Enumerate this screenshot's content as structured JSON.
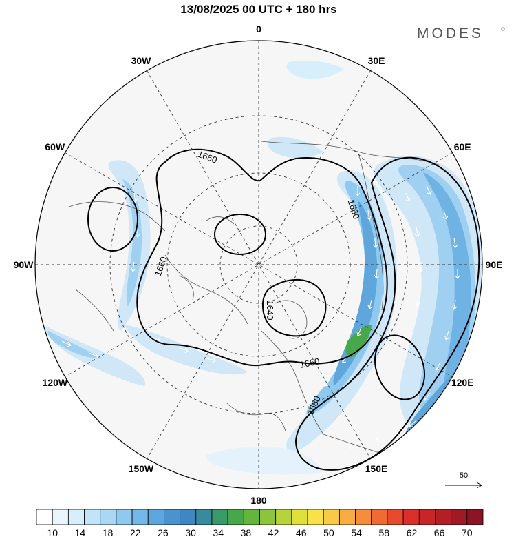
{
  "title": "13/08/2025  00 UTC  + 180 hrs",
  "brand": {
    "name": "MODES",
    "mark": "©"
  },
  "longitude_labels": [
    {
      "text": "180",
      "lon": 180
    },
    {
      "text": "150E",
      "lon": 150
    },
    {
      "text": "120E",
      "lon": 120
    },
    {
      "text": "90E",
      "lon": 90
    },
    {
      "text": "60E",
      "lon": 60
    },
    {
      "text": "30E",
      "lon": 30
    },
    {
      "text": "0",
      "lon": 0
    },
    {
      "text": "30W",
      "lon": -30
    },
    {
      "text": "60W",
      "lon": -60
    },
    {
      "text": "90W",
      "lon": -90
    },
    {
      "text": "120W",
      "lon": -120
    },
    {
      "text": "150W",
      "lon": -150
    }
  ],
  "contour_labels": [
    "1660",
    "1660",
    "1660",
    "1640",
    "1660",
    "1680"
  ],
  "reference_vector": {
    "label": "50"
  },
  "colorbar": {
    "labels": [
      "10",
      "14",
      "18",
      "22",
      "26",
      "30",
      "34",
      "38",
      "42",
      "46",
      "50",
      "54",
      "58",
      "62",
      "66",
      "70"
    ],
    "colors": [
      "#ffffff",
      "#eaf6fd",
      "#d7eefb",
      "#c2e4f8",
      "#a9d7f4",
      "#8fc9ef",
      "#74b8e7",
      "#5fa6dc",
      "#4b93cf",
      "#3f86c2",
      "#3a8a9e",
      "#3a9a6c",
      "#46a84a",
      "#63b53c",
      "#8cc43c",
      "#b6d43a",
      "#dfe13a",
      "#f7e248",
      "#f8cb47",
      "#f7ad42",
      "#f58d3a",
      "#f06a33",
      "#e9492d",
      "#dc2f2a",
      "#c92527",
      "#b41f26",
      "#9f1a25",
      "#8a1523"
    ]
  }
}
